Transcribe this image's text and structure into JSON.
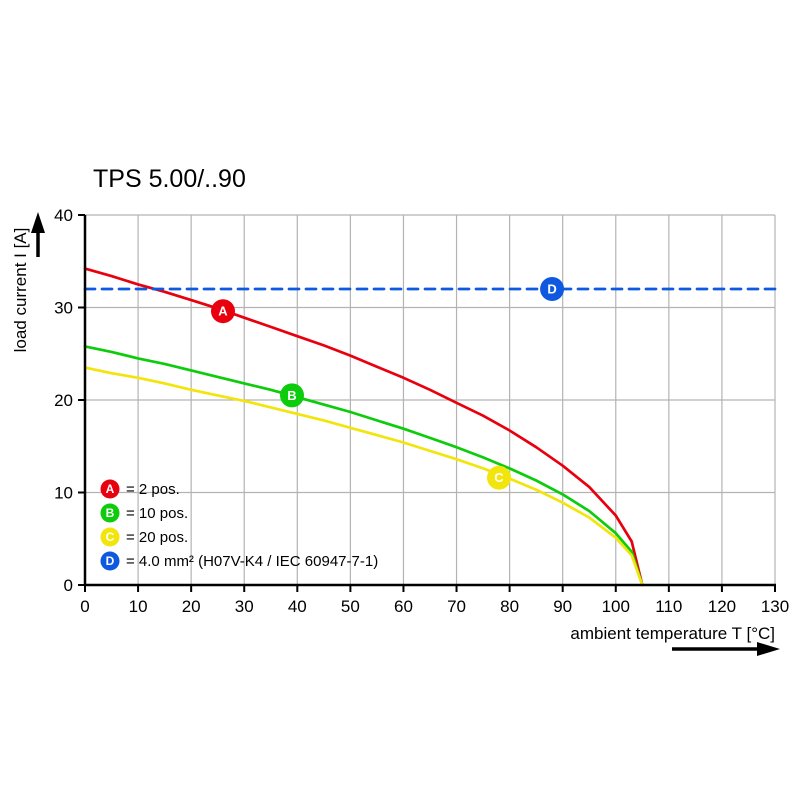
{
  "chart_data": {
    "type": "line",
    "title": "TPS 5.00/..90",
    "xlabel": "ambient temperature T [°C]",
    "ylabel": "load current I [A]",
    "xlim": [
      0,
      130
    ],
    "ylim": [
      0,
      40
    ],
    "x_ticks": [
      0,
      10,
      20,
      30,
      40,
      50,
      60,
      70,
      80,
      90,
      100,
      110,
      120,
      130
    ],
    "y_ticks": [
      0,
      10,
      20,
      30,
      40
    ],
    "grid": true,
    "grid_color": "#b3b3b3",
    "axis_color": "#000000",
    "legend_position": "inside-bottom-left",
    "series": [
      {
        "key": "A",
        "label": "2 pos.",
        "color": "#e8000e",
        "style": "solid",
        "x": [
          0,
          5,
          10,
          15,
          20,
          25,
          30,
          35,
          40,
          45,
          50,
          55,
          60,
          65,
          70,
          75,
          80,
          85,
          90,
          95,
          100,
          103,
          105
        ],
        "y": [
          34.2,
          33.4,
          32.5,
          31.7,
          30.8,
          29.9,
          28.9,
          27.9,
          26.9,
          25.9,
          24.8,
          23.6,
          22.4,
          21.1,
          19.7,
          18.3,
          16.7,
          14.9,
          12.9,
          10.6,
          7.5,
          4.7,
          0
        ],
        "marker": {
          "x": 26,
          "y": 29.6
        }
      },
      {
        "key": "B",
        "label": "10 pos.",
        "color": "#0ccc0c",
        "style": "solid",
        "x": [
          0,
          5,
          10,
          15,
          20,
          25,
          30,
          35,
          40,
          45,
          50,
          55,
          60,
          65,
          70,
          75,
          80,
          85,
          90,
          95,
          100,
          103,
          105
        ],
        "y": [
          25.8,
          25.2,
          24.5,
          23.9,
          23.2,
          22.5,
          21.8,
          21.1,
          20.3,
          19.5,
          18.7,
          17.8,
          16.9,
          15.9,
          14.9,
          13.8,
          12.6,
          11.3,
          9.8,
          8.0,
          5.6,
          3.6,
          0
        ],
        "marker": {
          "x": 39,
          "y": 20.5
        }
      },
      {
        "key": "C",
        "label": "20 pos.",
        "color": "#f2e50c",
        "style": "solid",
        "x": [
          0,
          5,
          10,
          15,
          20,
          25,
          30,
          35,
          40,
          45,
          50,
          55,
          60,
          65,
          70,
          75,
          80,
          85,
          90,
          95,
          100,
          103,
          105
        ],
        "y": [
          23.5,
          22.9,
          22.4,
          21.8,
          21.1,
          20.5,
          19.9,
          19.2,
          18.5,
          17.8,
          17.0,
          16.2,
          15.4,
          14.5,
          13.6,
          12.6,
          11.5,
          10.3,
          8.9,
          7.3,
          5.1,
          3.2,
          0
        ],
        "marker": {
          "x": 78,
          "y": 11.6
        }
      },
      {
        "key": "D",
        "label": "4.0 mm² (H07V-K4 / IEC 60947-7-1)",
        "color": "#0e59e0",
        "style": "dashed",
        "x": [
          0,
          130
        ],
        "y": [
          32,
          32
        ],
        "marker": {
          "x": 88,
          "y": 32
        }
      }
    ],
    "legend": [
      {
        "key": "A",
        "text": "= 2 pos."
      },
      {
        "key": "B",
        "text": "= 10 pos."
      },
      {
        "key": "C",
        "text": "= 20 pos."
      },
      {
        "key": "D",
        "text": "= 4.0 mm² (H07V-K4 / IEC 60947-7-1)"
      }
    ]
  }
}
